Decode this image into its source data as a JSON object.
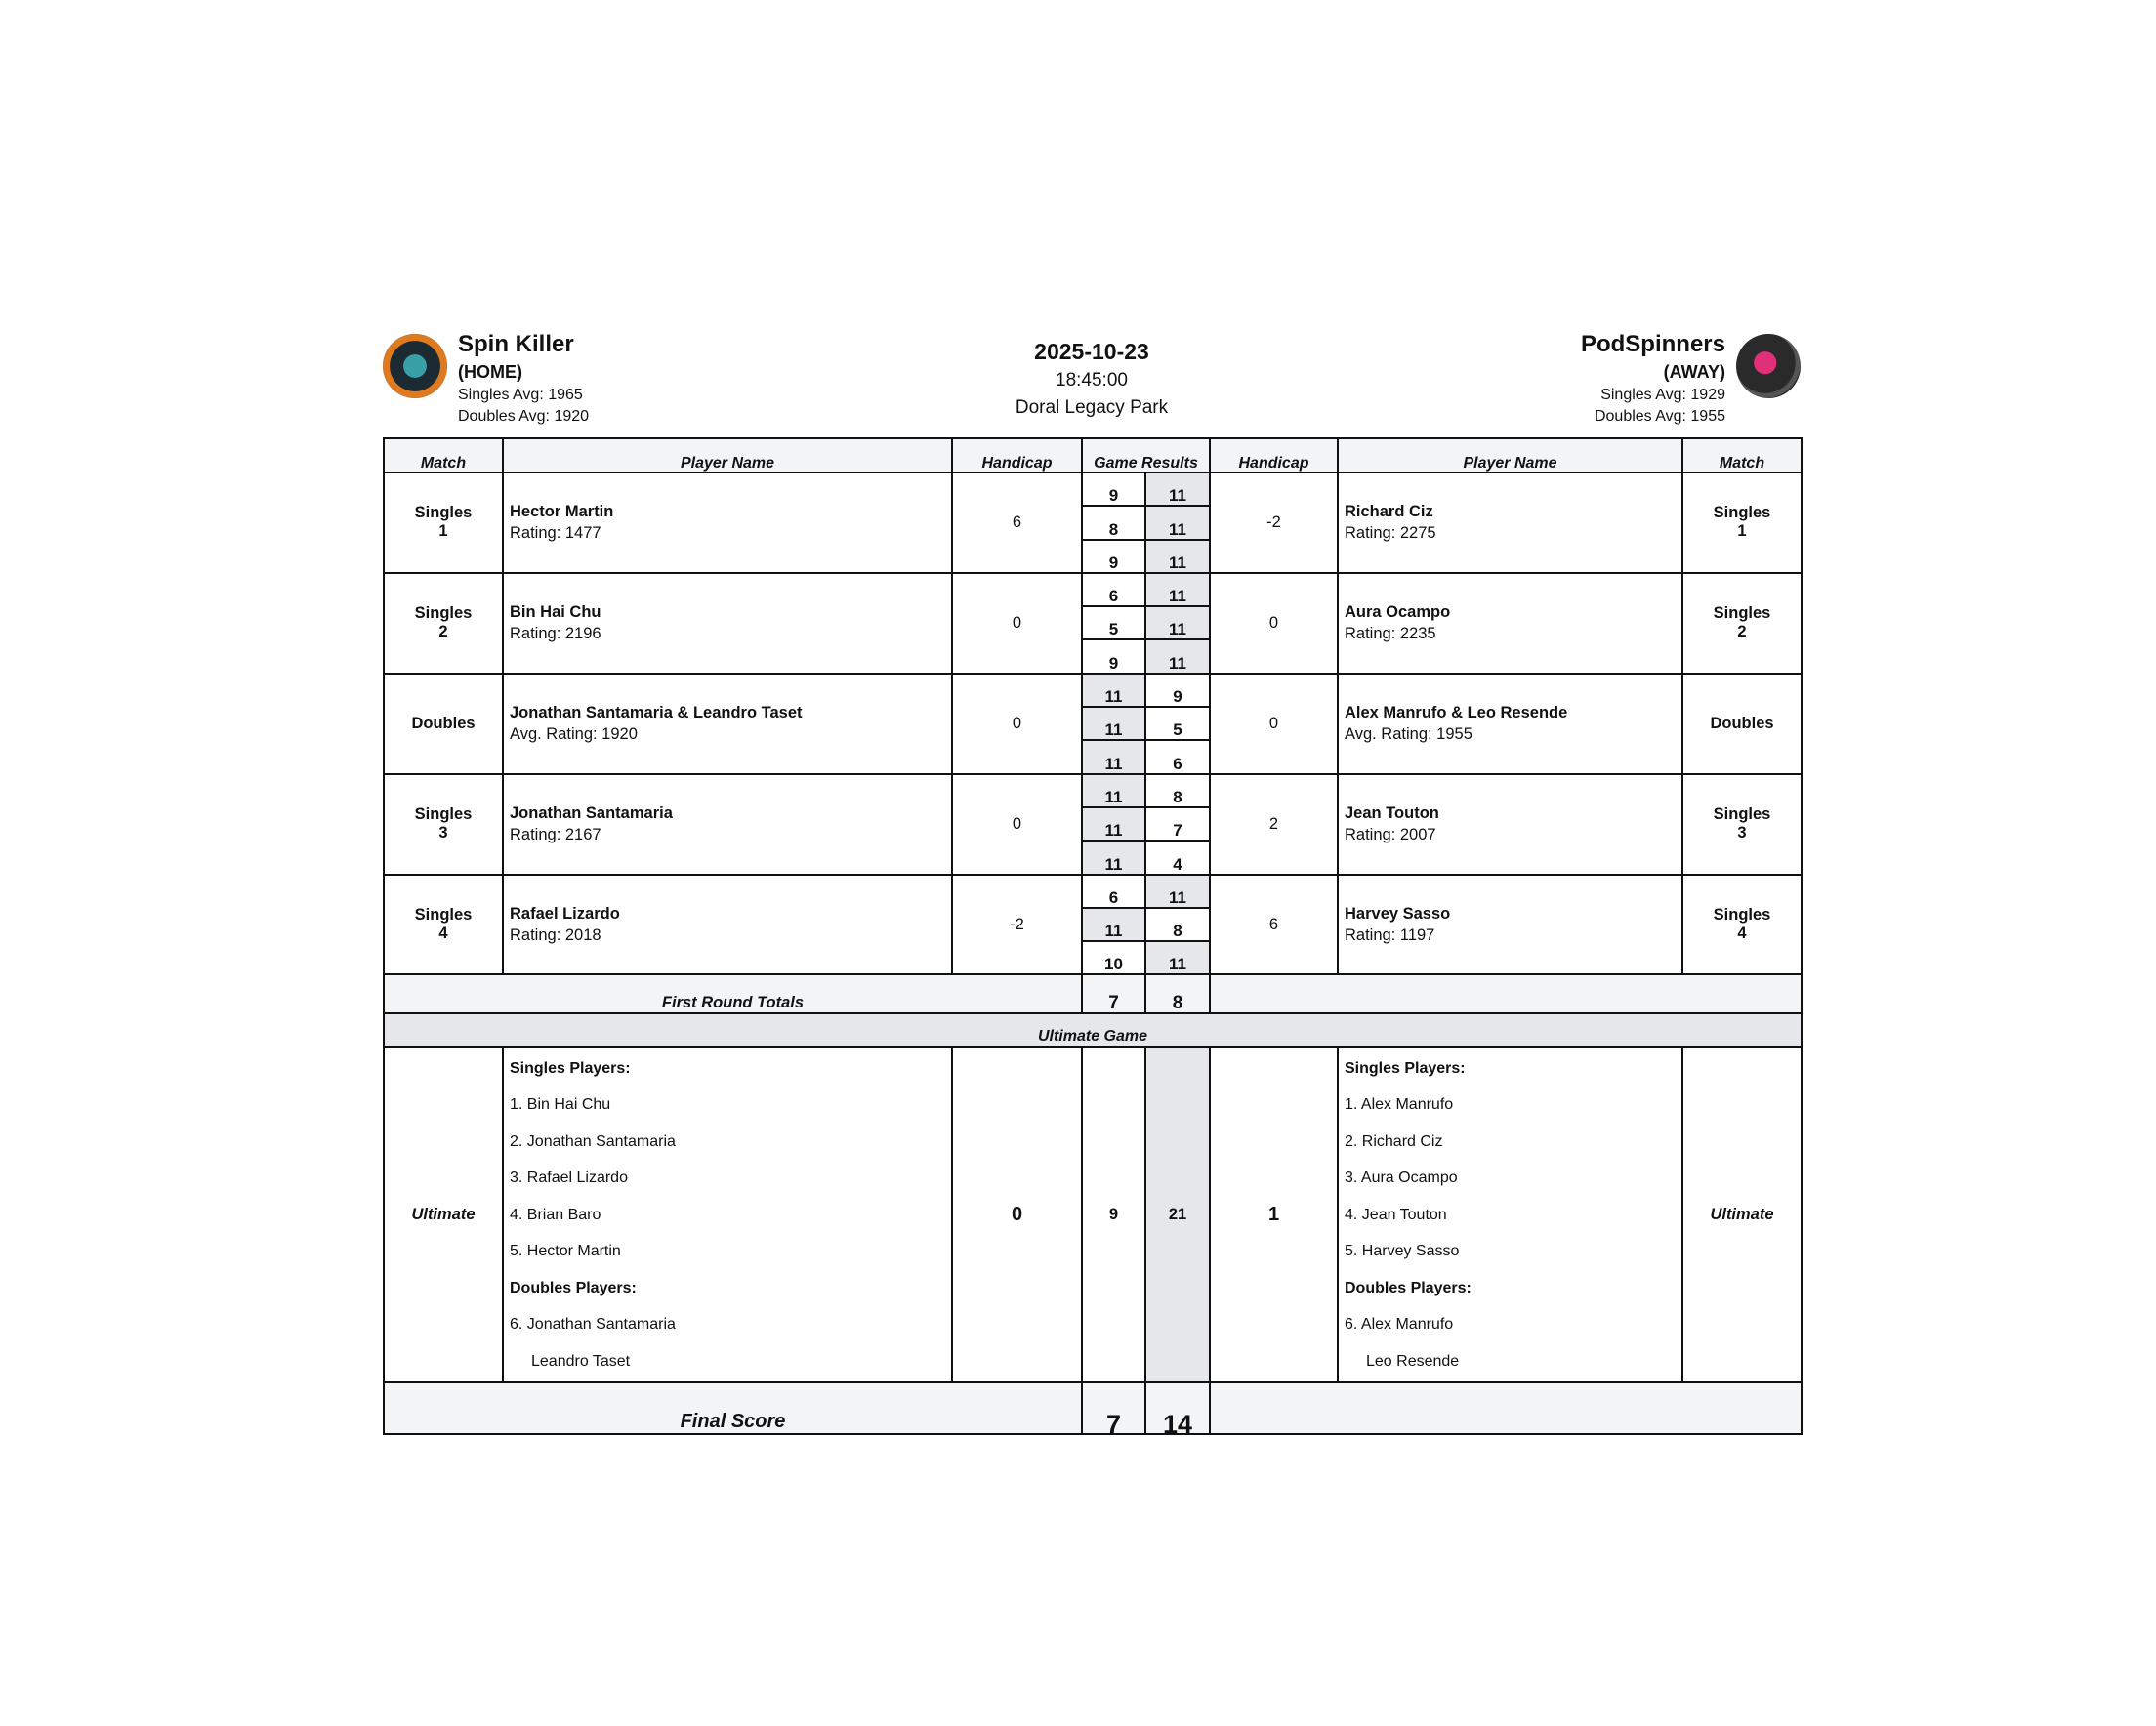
{
  "header": {
    "home": {
      "name": "Spin Killer",
      "tag": "(HOME)",
      "singles_avg": "Singles Avg: 1965",
      "doubles_avg": "Doubles Avg: 1920",
      "logo_text": "SPIN KILLER"
    },
    "away": {
      "name": "PodSpinners",
      "tag": "(AWAY)",
      "singles_avg": "Singles Avg: 1929",
      "doubles_avg": "Doubles Avg: 1955",
      "logo_text": "PODSPINNERS"
    },
    "date": "2025-10-23",
    "time": "18:45:00",
    "venue": "Doral Legacy Park"
  },
  "columns": {
    "match": "Match",
    "player": "Player Name",
    "handicap": "Handicap",
    "results": "Game Results"
  },
  "matches": [
    {
      "home": {
        "match": "Singles",
        "num": "1",
        "name": "Hector Martin",
        "rating": "Rating: 1477",
        "handicap": "6"
      },
      "away": {
        "match": "Singles",
        "num": "1",
        "name": "Richard Ciz",
        "rating": "Rating: 2275",
        "handicap": "-2"
      },
      "games": [
        [
          "9",
          "11"
        ],
        [
          "8",
          "11"
        ],
        [
          "9",
          "11"
        ]
      ]
    },
    {
      "home": {
        "match": "Singles",
        "num": "2",
        "name": "Bin Hai Chu",
        "rating": "Rating: 2196",
        "handicap": "0"
      },
      "away": {
        "match": "Singles",
        "num": "2",
        "name": "Aura Ocampo",
        "rating": "Rating: 2235",
        "handicap": "0"
      },
      "games": [
        [
          "6",
          "11"
        ],
        [
          "5",
          "11"
        ],
        [
          "9",
          "11"
        ]
      ]
    },
    {
      "home": {
        "match": "Doubles",
        "num": "",
        "name": "Jonathan Santamaria & Leandro Taset",
        "rating": "Avg. Rating: 1920",
        "handicap": "0"
      },
      "away": {
        "match": "Doubles",
        "num": "",
        "name": "Alex Manrufo & Leo Resende",
        "rating": "Avg. Rating: 1955",
        "handicap": "0"
      },
      "games": [
        [
          "11",
          "9"
        ],
        [
          "11",
          "5"
        ],
        [
          "11",
          "6"
        ]
      ]
    },
    {
      "home": {
        "match": "Singles",
        "num": "3",
        "name": "Jonathan Santamaria",
        "rating": "Rating: 2167",
        "handicap": "0"
      },
      "away": {
        "match": "Singles",
        "num": "3",
        "name": "Jean Touton",
        "rating": "Rating: 2007",
        "handicap": "2"
      },
      "games": [
        [
          "11",
          "8"
        ],
        [
          "11",
          "7"
        ],
        [
          "11",
          "4"
        ]
      ]
    },
    {
      "home": {
        "match": "Singles",
        "num": "4",
        "name": "Rafael Lizardo",
        "rating": "Rating: 2018",
        "handicap": "-2"
      },
      "away": {
        "match": "Singles",
        "num": "4",
        "name": "Harvey Sasso",
        "rating": "Rating: 1197",
        "handicap": "6"
      },
      "games": [
        [
          "6",
          "11"
        ],
        [
          "11",
          "8"
        ],
        [
          "10",
          "11"
        ]
      ]
    }
  ],
  "first_round": {
    "label": "First Round Totals",
    "home": "7",
    "away": "8"
  },
  "ultimate": {
    "title": "Ultimate Game",
    "label": "Ultimate",
    "home": {
      "singles_label": "Singles Players:",
      "singles": [
        "1. Bin Hai Chu",
        "2. Jonathan Santamaria",
        "3. Rafael Lizardo",
        "4. Brian Baro",
        "5. Hector Martin"
      ],
      "doubles_label": "Doubles Players:",
      "doubles": [
        "6. Jonathan Santamaria",
        "Leandro Taset"
      ],
      "handicap": "0",
      "score": "9"
    },
    "away": {
      "singles_label": "Singles Players:",
      "singles": [
        "1. Alex Manrufo",
        "2. Richard Ciz",
        "3. Aura Ocampo",
        "4. Jean Touton",
        "5. Harvey Sasso"
      ],
      "doubles_label": "Doubles Players:",
      "doubles": [
        "6. Alex Manrufo",
        "Leo Resende"
      ],
      "handicap": "1",
      "score": "21"
    }
  },
  "final": {
    "label": "Final Score",
    "home": "7",
    "away": "14"
  },
  "colors": {
    "win_shade": "#e5e7eb",
    "header_bg": "#f3f4f6",
    "border": "#111111"
  }
}
